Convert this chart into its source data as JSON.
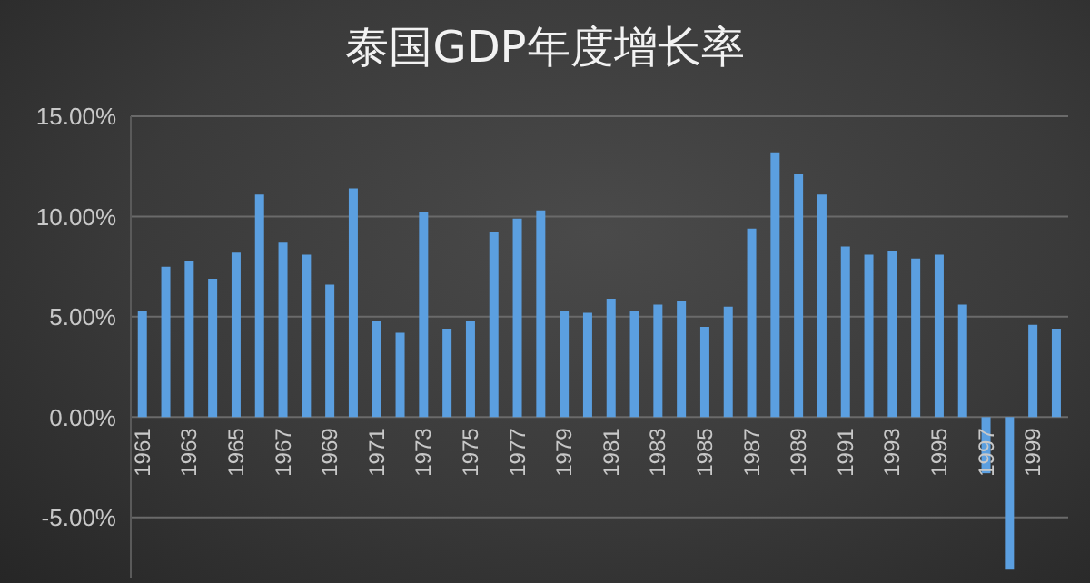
{
  "chart_data": {
    "type": "bar",
    "title": "泰国GDP年度增长率",
    "categories": [
      "1961",
      null,
      "1963",
      null,
      "1965",
      null,
      "1967",
      null,
      "1969",
      null,
      "1971",
      null,
      "1973",
      null,
      "1975",
      null,
      "1977",
      null,
      "1979",
      null,
      "1981",
      null,
      "1983",
      null,
      "1985",
      null,
      "1987",
      null,
      "1989",
      null,
      "1991",
      null,
      "1993",
      null,
      "1995",
      null,
      "1997",
      null,
      "1999",
      null
    ],
    "values": [
      5.3,
      7.5,
      7.8,
      6.9,
      8.2,
      11.1,
      8.7,
      8.1,
      6.6,
      11.4,
      4.8,
      4.2,
      10.2,
      4.4,
      4.8,
      9.2,
      9.9,
      10.3,
      5.3,
      5.2,
      5.9,
      5.3,
      5.6,
      5.8,
      4.5,
      5.5,
      9.4,
      13.2,
      12.1,
      11.1,
      8.5,
      8.1,
      8.3,
      7.9,
      8.1,
      5.6,
      -2.8,
      -7.6,
      4.6,
      4.4
    ],
    "color": "#5b9fe0",
    "ylim": [
      -8,
      15
    ],
    "yticks": [
      {
        "value": -5,
        "label": "-5.00%"
      },
      {
        "value": 0,
        "label": "0.00%"
      },
      {
        "value": 5,
        "label": "5.00%"
      },
      {
        "value": 10,
        "label": "10.00%"
      },
      {
        "value": 15,
        "label": "15.00%"
      }
    ],
    "grid": "y"
  }
}
